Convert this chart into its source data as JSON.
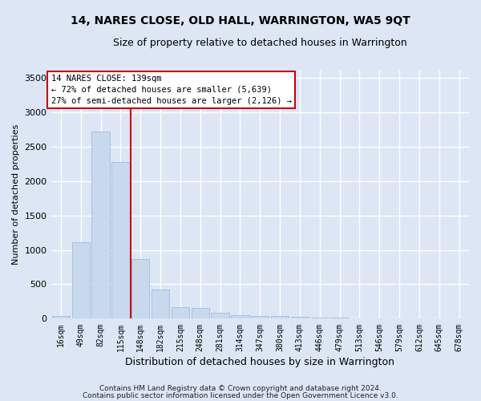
{
  "title": "14, NARES CLOSE, OLD HALL, WARRINGTON, WA5 9QT",
  "subtitle": "Size of property relative to detached houses in Warrington",
  "xlabel": "Distribution of detached houses by size in Warrington",
  "ylabel": "Number of detached properties",
  "bar_color": "#c8d9ee",
  "bar_edgecolor": "#9ab5d5",
  "categories": [
    "16sqm",
    "49sqm",
    "82sqm",
    "115sqm",
    "148sqm",
    "182sqm",
    "215sqm",
    "248sqm",
    "281sqm",
    "314sqm",
    "347sqm",
    "380sqm",
    "413sqm",
    "446sqm",
    "479sqm",
    "513sqm",
    "546sqm",
    "579sqm",
    "612sqm",
    "645sqm",
    "678sqm"
  ],
  "values": [
    45,
    1110,
    2720,
    2270,
    870,
    420,
    165,
    160,
    90,
    55,
    40,
    40,
    28,
    22,
    18,
    8,
    8,
    4,
    4,
    4,
    4
  ],
  "ylim": [
    0,
    3600
  ],
  "yticks": [
    0,
    500,
    1000,
    1500,
    2000,
    2500,
    3000,
    3500
  ],
  "vline_x": 3.5,
  "vline_color": "#cc0000",
  "annotation_line1": "14 NARES CLOSE: 139sqm",
  "annotation_line2": "← 72% of detached houses are smaller (5,639)",
  "annotation_line3": "27% of semi-detached houses are larger (2,126) →",
  "annotation_box_facecolor": "#ffffff",
  "annotation_box_edgecolor": "#cc0000",
  "footer1": "Contains HM Land Registry data © Crown copyright and database right 2024.",
  "footer2": "Contains public sector information licensed under the Open Government Licence v3.0.",
  "background_color": "#dce6f5",
  "plot_bg_color": "#dce6f5",
  "grid_color": "#ffffff",
  "title_fontsize": 10,
  "subtitle_fontsize": 9
}
